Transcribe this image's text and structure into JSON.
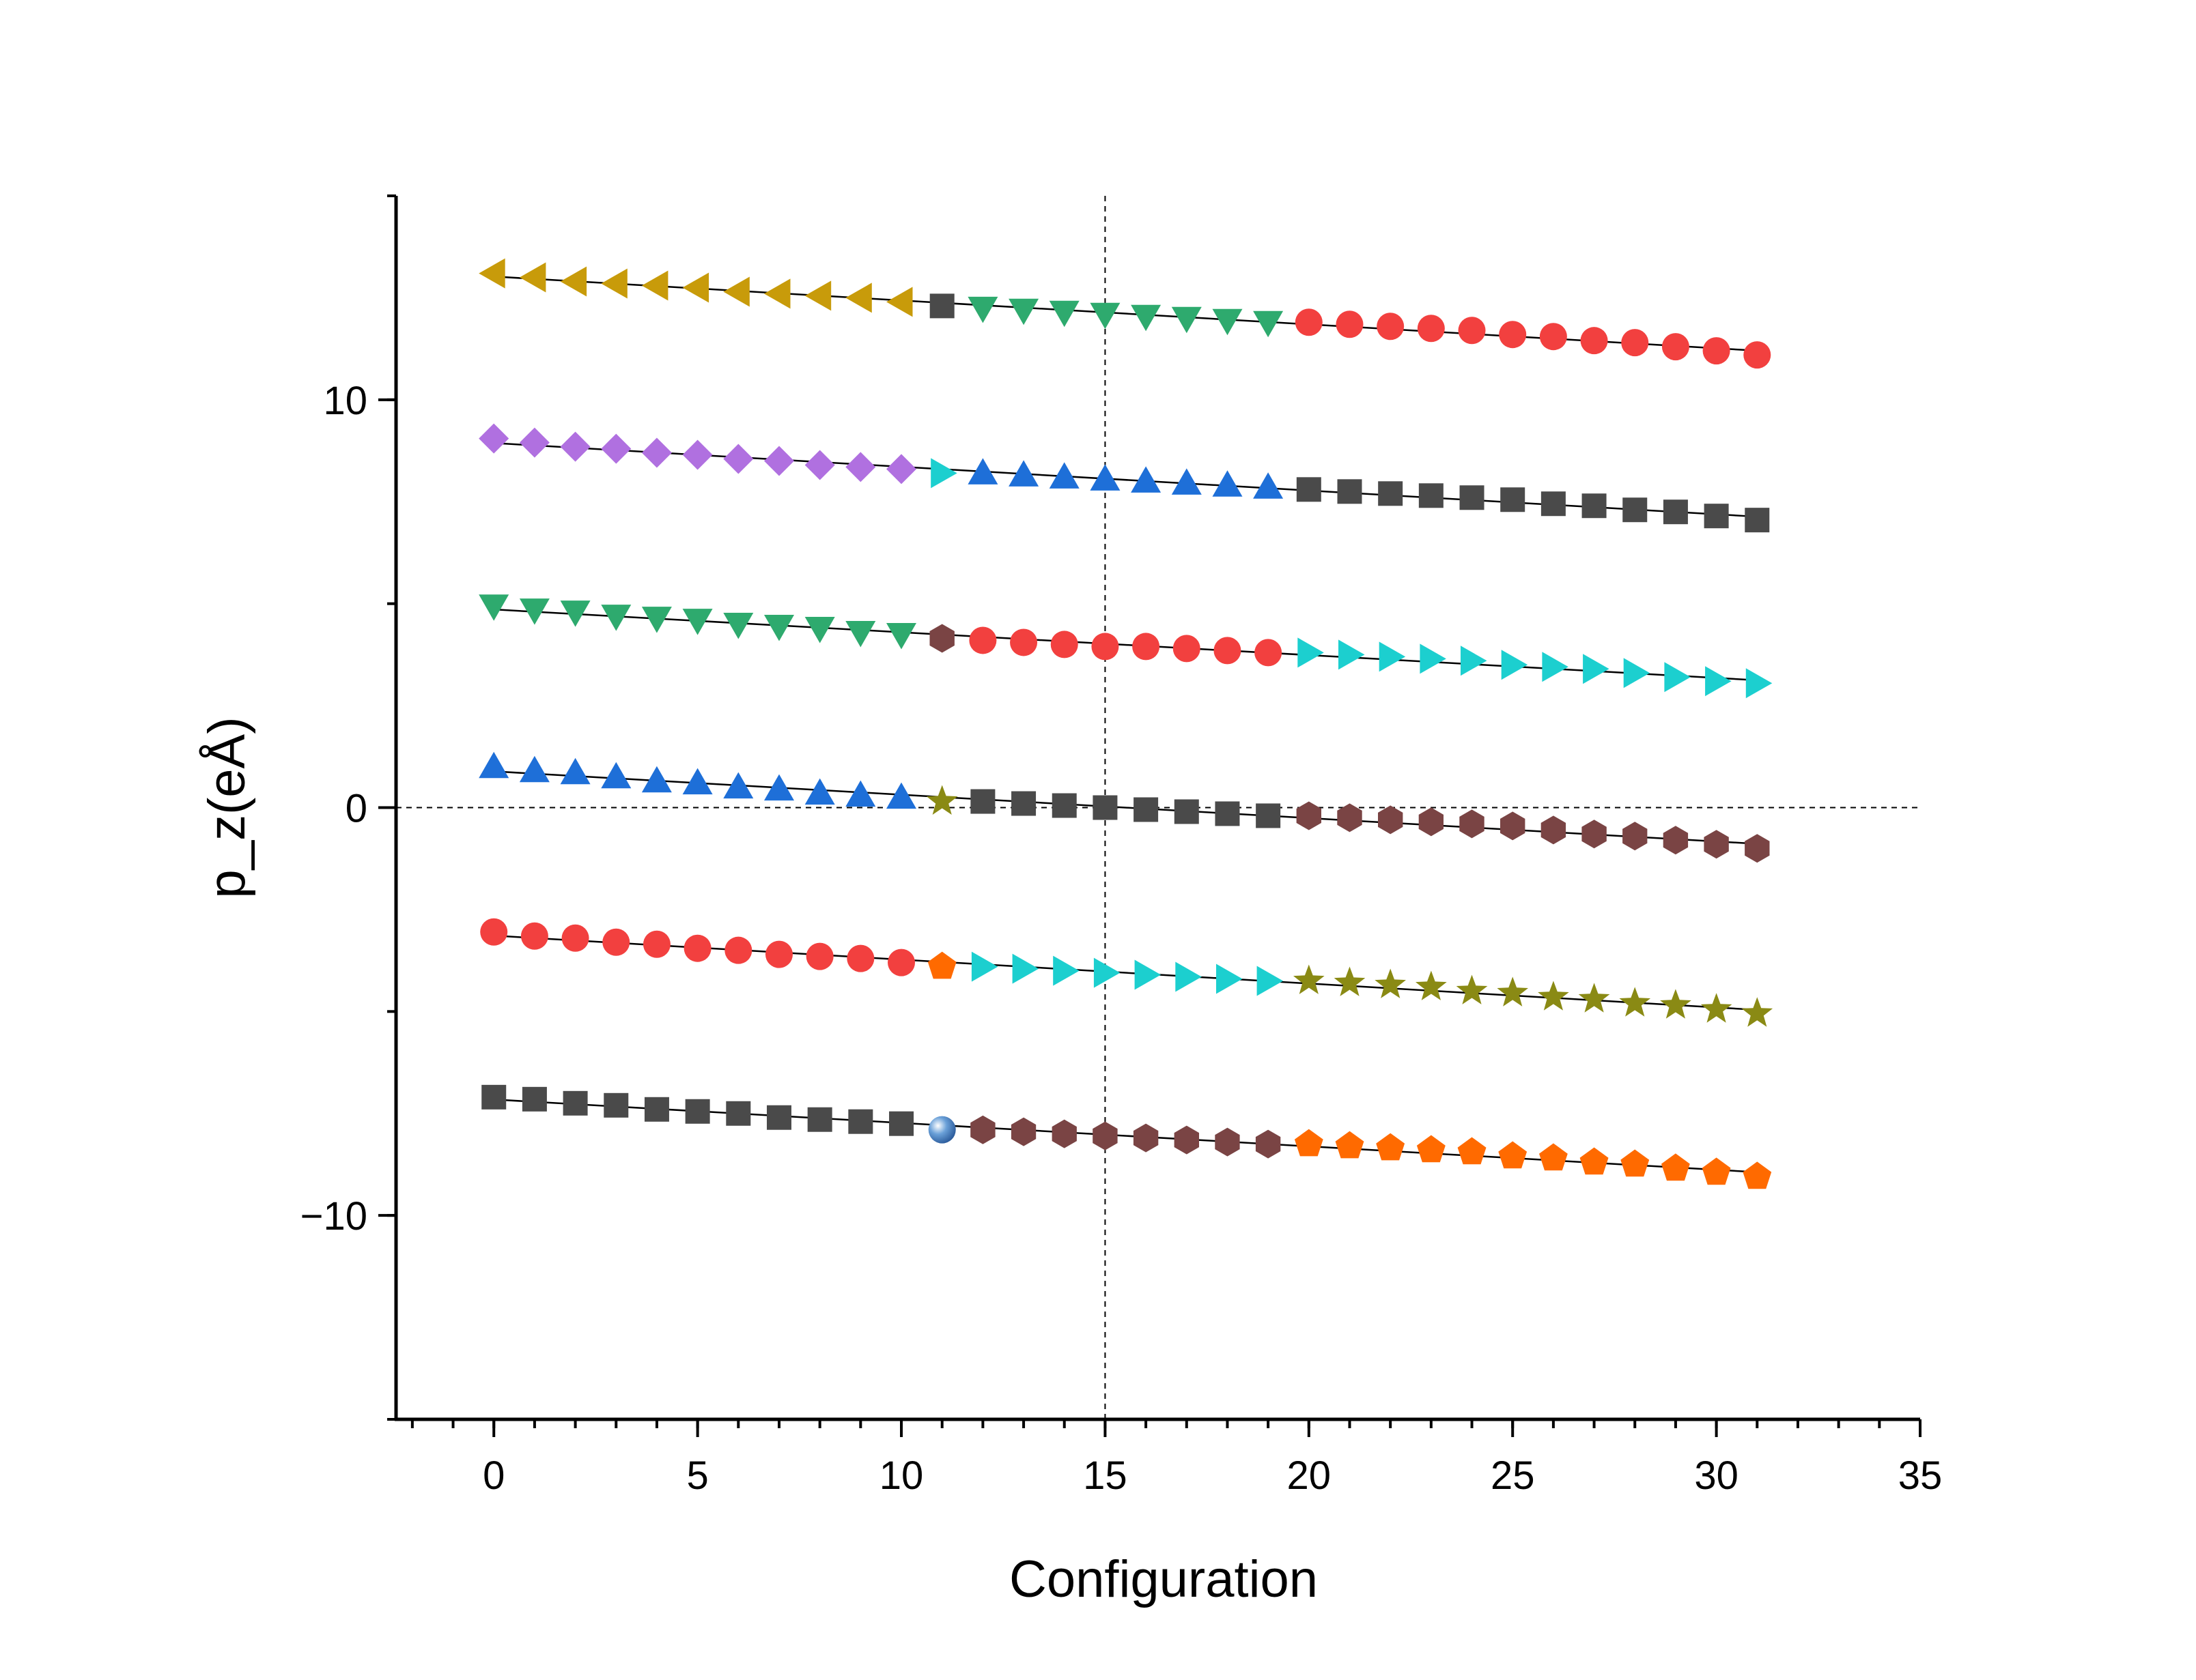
{
  "chart_data": {
    "type": "scatter",
    "title": "",
    "xlabel": "Configuration",
    "ylabel": "p_z(eÅ)",
    "xlim": [
      -2.4,
      35
    ],
    "ylim": [
      -15,
      15
    ],
    "xticks": [
      0,
      5,
      10,
      15,
      20,
      25,
      30,
      35
    ],
    "yticks": [
      -10,
      0,
      10
    ],
    "x_minor_step": 1,
    "y_minor_step": 5,
    "reference_lines": {
      "x": 15,
      "y": 0,
      "style": "dashed"
    },
    "grid": false,
    "legend": "none",
    "series": [
      {
        "marker": "triangle-left",
        "color": "#c89b0a",
        "x": [
          0,
          1,
          2,
          3,
          4,
          5,
          6,
          7,
          8,
          9,
          10
        ],
        "y": [
          13.1,
          13.0,
          12.9,
          12.85,
          12.8,
          12.75,
          12.65,
          12.6,
          12.55,
          12.5,
          12.4
        ]
      },
      {
        "marker": "square",
        "color": "#4a4a4a",
        "x": [
          11
        ],
        "y": [
          12.3
        ]
      },
      {
        "marker": "triangle-down",
        "color": "#2eaa6e",
        "x": [
          12,
          13,
          14,
          15,
          16,
          17,
          18,
          19
        ],
        "y": [
          12.25,
          12.2,
          12.15,
          12.1,
          12.05,
          12.0,
          11.95,
          11.9
        ]
      },
      {
        "marker": "circle",
        "color": "#f2403f",
        "x": [
          20,
          21,
          22,
          23,
          24,
          25,
          26,
          27,
          28,
          29,
          30,
          31
        ],
        "y": [
          11.9,
          11.85,
          11.8,
          11.75,
          11.7,
          11.6,
          11.55,
          11.45,
          11.4,
          11.3,
          11.2,
          11.1
        ]
      },
      {
        "marker": "diamond",
        "color": "#b070e0",
        "x": [
          0,
          1,
          2,
          3,
          4,
          5,
          6,
          7,
          8,
          9,
          10
        ],
        "y": [
          9.05,
          8.95,
          8.85,
          8.8,
          8.7,
          8.65,
          8.55,
          8.5,
          8.4,
          8.35,
          8.3
        ]
      },
      {
        "marker": "triangle-right",
        "color": "#1ccfcf",
        "x": [
          11
        ],
        "y": [
          8.2
        ]
      },
      {
        "marker": "triangle-up",
        "color": "#1e6fd8",
        "x": [
          12,
          13,
          14,
          15,
          16,
          17,
          18,
          19
        ],
        "y": [
          8.2,
          8.15,
          8.1,
          8.05,
          8.0,
          7.95,
          7.9,
          7.85
        ]
      },
      {
        "marker": "square",
        "color": "#4a4a4a",
        "x": [
          20,
          21,
          22,
          23,
          24,
          25,
          26,
          27,
          28,
          29,
          30,
          31
        ],
        "y": [
          7.8,
          7.75,
          7.7,
          7.65,
          7.6,
          7.55,
          7.45,
          7.4,
          7.3,
          7.25,
          7.15,
          7.05
        ]
      },
      {
        "marker": "triangle-down",
        "color": "#2eaa6e",
        "x": [
          0,
          1,
          2,
          3,
          4,
          5,
          6,
          7,
          8,
          9,
          10
        ],
        "y": [
          4.95,
          4.85,
          4.8,
          4.7,
          4.65,
          4.6,
          4.5,
          4.45,
          4.4,
          4.3,
          4.25
        ]
      },
      {
        "marker": "hexagon",
        "color": "#7a4444",
        "x": [
          11
        ],
        "y": [
          4.15
        ]
      },
      {
        "marker": "circle",
        "color": "#f2403f",
        "x": [
          12,
          13,
          14,
          15,
          16,
          17,
          18,
          19
        ],
        "y": [
          4.1,
          4.05,
          4.0,
          3.95,
          3.95,
          3.9,
          3.85,
          3.8
        ]
      },
      {
        "marker": "triangle-right",
        "color": "#1ccfcf",
        "x": [
          20,
          21,
          22,
          23,
          24,
          25,
          26,
          27,
          28,
          29,
          30,
          31
        ],
        "y": [
          3.8,
          3.75,
          3.7,
          3.65,
          3.6,
          3.5,
          3.45,
          3.4,
          3.3,
          3.2,
          3.1,
          3.05
        ]
      },
      {
        "marker": "triangle-up",
        "color": "#1e6fd8",
        "x": [
          0,
          1,
          2,
          3,
          4,
          5,
          6,
          7,
          8,
          9,
          10
        ],
        "y": [
          1.0,
          0.9,
          0.85,
          0.75,
          0.65,
          0.6,
          0.5,
          0.45,
          0.35,
          0.3,
          0.25
        ]
      },
      {
        "marker": "star",
        "color": "#8a8a14",
        "x": [
          11
        ],
        "y": [
          0.15
        ]
      },
      {
        "marker": "square",
        "color": "#4a4a4a",
        "x": [
          12,
          13,
          14,
          15,
          16,
          17,
          18,
          19
        ],
        "y": [
          0.15,
          0.1,
          0.05,
          0.0,
          -0.05,
          -0.1,
          -0.15,
          -0.2
        ]
      },
      {
        "marker": "hexagon",
        "color": "#7a4444",
        "x": [
          20,
          21,
          22,
          23,
          24,
          25,
          26,
          27,
          28,
          29,
          30,
          31
        ],
        "y": [
          -0.2,
          -0.25,
          -0.3,
          -0.35,
          -0.4,
          -0.45,
          -0.55,
          -0.65,
          -0.7,
          -0.8,
          -0.9,
          -1.0
        ]
      },
      {
        "marker": "circle",
        "color": "#f2403f",
        "x": [
          0,
          1,
          2,
          3,
          4,
          5,
          6,
          7,
          8,
          9,
          10
        ],
        "y": [
          -3.05,
          -3.15,
          -3.2,
          -3.3,
          -3.35,
          -3.45,
          -3.5,
          -3.6,
          -3.65,
          -3.7,
          -3.8
        ]
      },
      {
        "marker": "pentagon",
        "color": "#ff6a00",
        "x": [
          11
        ],
        "y": [
          -3.9
        ]
      },
      {
        "marker": "triangle-right",
        "color": "#1ccfcf",
        "x": [
          12,
          13,
          14,
          15,
          16,
          17,
          18,
          19
        ],
        "y": [
          -3.9,
          -3.95,
          -4.0,
          -4.05,
          -4.1,
          -4.15,
          -4.2,
          -4.25
        ]
      },
      {
        "marker": "star",
        "color": "#8a8a14",
        "x": [
          20,
          21,
          22,
          23,
          24,
          25,
          26,
          27,
          28,
          29,
          30,
          31
        ],
        "y": [
          -4.25,
          -4.3,
          -4.35,
          -4.4,
          -4.5,
          -4.55,
          -4.65,
          -4.7,
          -4.8,
          -4.85,
          -4.95,
          -5.05
        ]
      },
      {
        "marker": "square",
        "color": "#4a4a4a",
        "x": [
          0,
          1,
          2,
          3,
          4,
          5,
          6,
          7,
          8,
          9,
          10
        ],
        "y": [
          -7.1,
          -7.15,
          -7.25,
          -7.3,
          -7.4,
          -7.45,
          -7.5,
          -7.6,
          -7.65,
          -7.7,
          -7.75
        ]
      },
      {
        "marker": "sphere",
        "color": "#6aa0d8",
        "x": [
          11
        ],
        "y": [
          -7.9
        ]
      },
      {
        "marker": "hexagon",
        "color": "#7a4444",
        "x": [
          12,
          13,
          14,
          15,
          16,
          17,
          18,
          19
        ],
        "y": [
          -7.9,
          -7.95,
          -8.0,
          -8.05,
          -8.1,
          -8.15,
          -8.2,
          -8.25
        ]
      },
      {
        "marker": "pentagon",
        "color": "#ff6a00",
        "x": [
          20,
          21,
          22,
          23,
          24,
          25,
          26,
          27,
          28,
          29,
          30,
          31
        ],
        "y": [
          -8.25,
          -8.3,
          -8.35,
          -8.4,
          -8.45,
          -8.55,
          -8.6,
          -8.7,
          -8.75,
          -8.85,
          -8.95,
          -9.05
        ]
      }
    ]
  }
}
